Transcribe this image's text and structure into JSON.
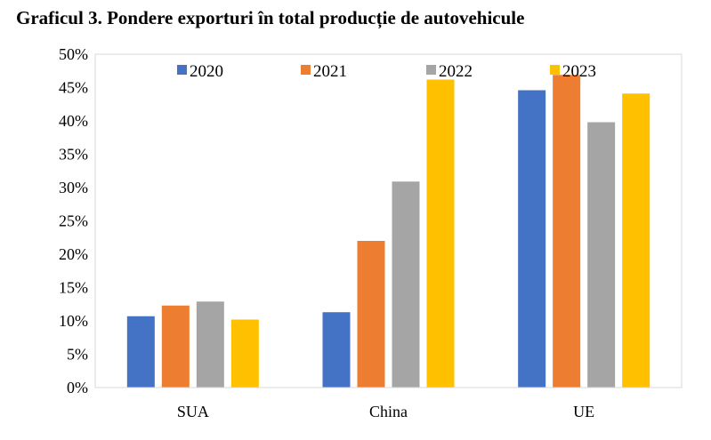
{
  "title": "Graficul 3. Pondere exporturi în total producție de autovehicule",
  "chart_data": {
    "type": "bar",
    "categories": [
      "SUA",
      "China",
      "UE"
    ],
    "series": [
      {
        "name": "2020",
        "color": "#4472C4",
        "values": [
          10.7,
          11.3,
          44.6
        ]
      },
      {
        "name": "2021",
        "color": "#ED7D31",
        "values": [
          12.3,
          22.0,
          46.9
        ]
      },
      {
        "name": "2022",
        "color": "#A5A5A5",
        "values": [
          12.9,
          30.9,
          39.8
        ]
      },
      {
        "name": "2023",
        "color": "#FFC000",
        "values": [
          10.2,
          46.2,
          44.1
        ]
      }
    ],
    "ylim": [
      0,
      50
    ],
    "yticks": [
      "0%",
      "5%",
      "10%",
      "15%",
      "20%",
      "25%",
      "30%",
      "35%",
      "40%",
      "45%",
      "50%"
    ],
    "legend_position": "top",
    "grid": false
  }
}
